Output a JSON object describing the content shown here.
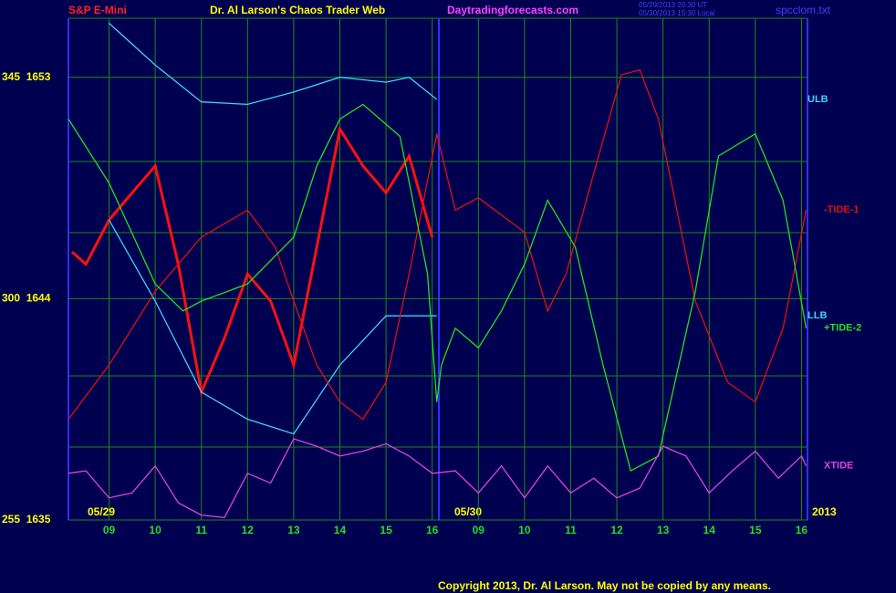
{
  "header": {
    "left": "S&P E-Mini",
    "center": "Dr. Al Larson's Chaos Trader Web",
    "site": "Daytradingforecasts.com",
    "stamp1": "05/29/2013 20:30 UT",
    "stamp2": "05/30/2013 15:30 Local",
    "file": "spcclom.txt"
  },
  "footer": {
    "copyright": "Copyright 2013, Dr. Al Larson. May not be copied by any means.",
    "date1": "05/29",
    "date2": "05/30",
    "year": "2013"
  },
  "chart_data": {
    "type": "line",
    "title": "S&P E-Mini",
    "xlim": [
      0.12,
      16.13
    ],
    "xticks": [
      {
        "value": 1,
        "label": "09"
      },
      {
        "value": 2,
        "label": "10"
      },
      {
        "value": 3,
        "label": "11"
      },
      {
        "value": 4,
        "label": "12"
      },
      {
        "value": 5,
        "label": "13"
      },
      {
        "value": 6,
        "label": "14"
      },
      {
        "value": 7,
        "label": "15"
      },
      {
        "value": 8,
        "label": "16"
      },
      {
        "value": 9,
        "label": "09"
      },
      {
        "value": 10,
        "label": "10"
      },
      {
        "value": 11,
        "label": "11"
      },
      {
        "value": 12,
        "label": "12"
      },
      {
        "value": 13,
        "label": "13"
      },
      {
        "value": 14,
        "label": "14"
      },
      {
        "value": 15,
        "label": "15"
      },
      {
        "value": 16,
        "label": "16"
      }
    ],
    "ylim": [
      1635,
      1655.4
    ],
    "yticks": [
      {
        "value": 1635,
        "label": "255  1635"
      },
      {
        "value": 1644,
        "label": "300  1644"
      },
      {
        "value": 1653,
        "label": "345  1653"
      }
    ],
    "grid": true,
    "series": [
      {
        "color": "#ff1010",
        "x": [
          0.2,
          0.5,
          1,
          1.5,
          2,
          2.5,
          3,
          3.5,
          4,
          4.5,
          5,
          5.5,
          6,
          6.5,
          7,
          7.5,
          8
        ],
        "values": [
          1645.9,
          1645.4,
          1647.2,
          1648.3,
          1649.4,
          1645.4,
          1640.2,
          1642.4,
          1645.0,
          1643.9,
          1641.3,
          1646.1,
          1650.9,
          1649.4,
          1648.3,
          1649.8,
          1646.5
        ]
      },
      {
        "name": "ULB",
        "color": "#40d0ff",
        "x": [
          1,
          2,
          3,
          4,
          5,
          6,
          7,
          7.5,
          8.1
        ],
        "values": [
          1655.2,
          1653.5,
          1652.0,
          1651.9,
          1652.4,
          1653.0,
          1652.8,
          1653.0,
          1652.1
        ]
      },
      {
        "name": "LLB",
        "color": "#40d0ff",
        "x": [
          1,
          2,
          3,
          4,
          5,
          6,
          7,
          8.1
        ],
        "values": [
          1647.2,
          1643.9,
          1640.2,
          1639.1,
          1638.5,
          1641.3,
          1643.3,
          1643.3
        ]
      },
      {
        "name": "-TIDE-1",
        "color": "#e01010",
        "x": [
          0.12,
          1,
          2,
          3,
          4,
          4.6,
          5,
          5.5,
          6,
          6.5,
          7,
          7.5,
          8.1,
          8.5,
          9,
          10,
          10.5,
          10.9,
          11.5,
          12.1,
          12.5,
          12.9,
          13.7,
          14.4,
          15,
          15.6,
          16.1
        ],
        "values": [
          1639.1,
          1641.3,
          1644.3,
          1646.5,
          1647.6,
          1646.1,
          1643.9,
          1641.3,
          1639.8,
          1639.1,
          1640.6,
          1645.0,
          1650.7,
          1647.6,
          1648.1,
          1646.7,
          1643.5,
          1645.0,
          1649.1,
          1653.1,
          1653.3,
          1651.3,
          1643.9,
          1640.6,
          1639.8,
          1642.8,
          1647.6
        ]
      },
      {
        "name": "+TIDE-2",
        "color": "#20e020",
        "x": [
          0.12,
          1,
          2,
          2.6,
          3,
          4,
          5,
          5.5,
          6,
          6.5,
          7.3,
          7.9,
          8.1,
          8.2,
          8.5,
          9,
          9.5,
          10,
          10.5,
          11.1,
          11.7,
          12.3,
          12.9,
          13.7,
          14.2,
          15,
          15.6,
          16.1
        ],
        "values": [
          1651.3,
          1648.7,
          1644.6,
          1643.5,
          1643.9,
          1644.6,
          1646.5,
          1649.4,
          1651.3,
          1651.9,
          1650.6,
          1645.0,
          1639.8,
          1641.3,
          1642.8,
          1642.0,
          1643.5,
          1645.4,
          1648.0,
          1646.1,
          1641.3,
          1637.0,
          1637.6,
          1644.3,
          1649.8,
          1650.7,
          1648.0,
          1642.8
        ]
      },
      {
        "name": "XTIDE",
        "color": "#e040e0",
        "x": [
          0.12,
          0.5,
          1,
          1.5,
          2,
          2.5,
          3,
          3.5,
          4,
          4.5,
          5,
          5.5,
          6,
          6.5,
          7,
          7.5,
          8,
          8.5,
          9,
          9.5,
          10,
          10.5,
          11,
          11.5,
          12,
          12.5,
          13,
          13.5,
          14,
          14.5,
          15,
          15.5,
          16,
          16.1
        ],
        "values": [
          1636.9,
          1637.0,
          1635.9,
          1636.1,
          1637.2,
          1635.7,
          1635.2,
          1635.1,
          1636.9,
          1636.5,
          1638.3,
          1638.0,
          1637.6,
          1637.8,
          1638.1,
          1637.6,
          1636.9,
          1637.0,
          1636.1,
          1637.2,
          1635.9,
          1637.2,
          1636.1,
          1636.7,
          1635.9,
          1636.3,
          1638.0,
          1637.6,
          1636.1,
          1637.0,
          1637.8,
          1636.7,
          1637.6,
          1637.2
        ]
      }
    ]
  }
}
